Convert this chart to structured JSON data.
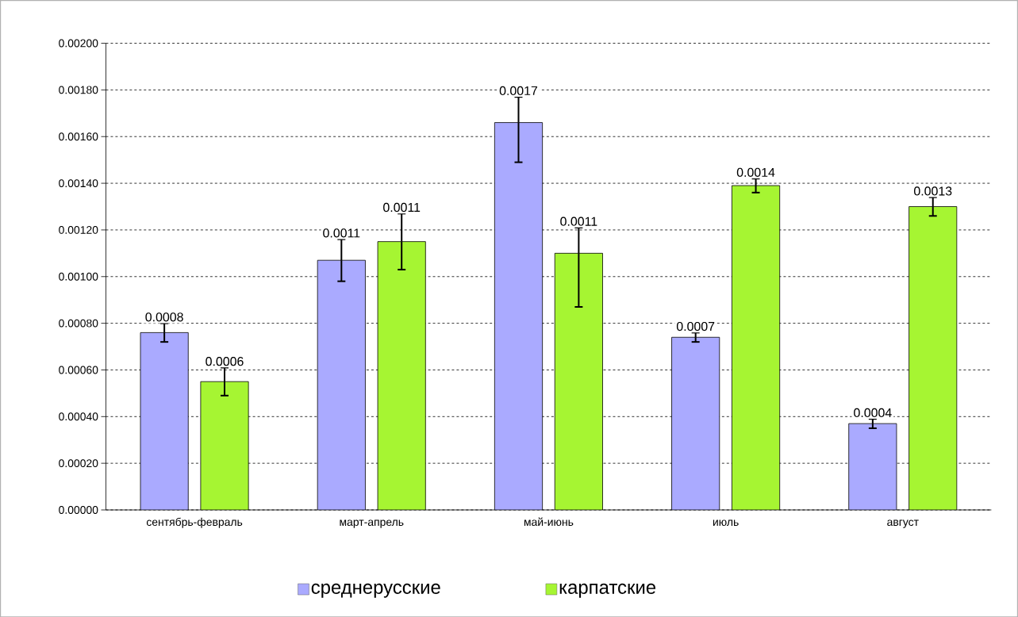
{
  "chart_data": {
    "type": "bar",
    "categories": [
      "сентябрь-февраль",
      "март-апрель",
      "май-июнь",
      "июль",
      "август"
    ],
    "series": [
      {
        "name": "среднерусские",
        "color": "#aaaaff",
        "values": [
          0.00076,
          0.00107,
          0.00166,
          0.00074,
          0.00037
        ],
        "errors": [
          4e-05,
          9e-05,
          [
            0.00149,
            0.00177
          ],
          2e-05,
          2e-05
        ],
        "value_labels": [
          "0.0008",
          "0.0011",
          "0.0017",
          "0.0007",
          "0.0004"
        ]
      },
      {
        "name": "карпатские",
        "color": "#a6f532",
        "values": [
          0.00055,
          0.00115,
          0.0011,
          0.00139,
          0.0013
        ],
        "errors": [
          6e-05,
          0.00012,
          [
            0.00087,
            0.00121
          ],
          3e-05,
          4e-05
        ],
        "value_labels": [
          "0.0006",
          "0.0011",
          "0.0011",
          "0.0014",
          "0.0013"
        ]
      }
    ],
    "ylim": [
      0,
      0.002
    ],
    "yticks": [
      {
        "value": 0,
        "label": "0.00000"
      },
      {
        "value": 0.0002,
        "label": "0.00020"
      },
      {
        "value": 0.0004,
        "label": "0.00040"
      },
      {
        "value": 0.0006,
        "label": "0.00060"
      },
      {
        "value": 0.0008,
        "label": "0.00080"
      },
      {
        "value": 0.001,
        "label": "0.00100"
      },
      {
        "value": 0.0012,
        "label": "0.00120"
      },
      {
        "value": 0.0014,
        "label": "0.00140"
      },
      {
        "value": 0.0016,
        "label": "0.00160"
      },
      {
        "value": 0.0018,
        "label": "0.00180"
      },
      {
        "value": 0.002,
        "label": "0.00200"
      }
    ],
    "grid": "y",
    "legend": "bottom"
  }
}
